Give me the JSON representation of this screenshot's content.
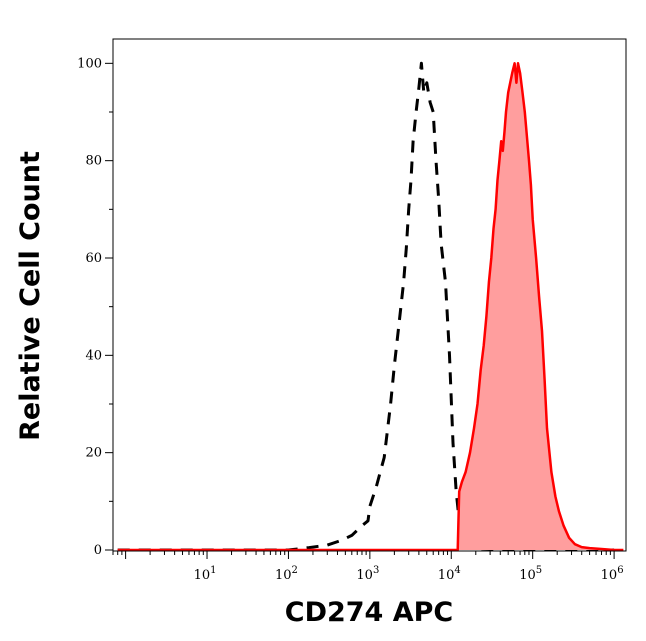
{
  "chart_data": {
    "type": "area",
    "xlabel": "CD274 APC",
    "ylabel": "Relative Cell Count",
    "xscale": "log",
    "xlim": [
      0.7,
      1400000
    ],
    "ylim": [
      0,
      105
    ],
    "x_ticks": [
      {
        "base": "10",
        "exp": "1",
        "value": 10
      },
      {
        "base": "10",
        "exp": "2",
        "value": 100
      },
      {
        "base": "10",
        "exp": "3",
        "value": 1000
      },
      {
        "base": "10",
        "exp": "4",
        "value": 10000
      },
      {
        "base": "10",
        "exp": "5",
        "value": 100000
      },
      {
        "base": "10",
        "exp": "6",
        "value": 1000000
      }
    ],
    "y_ticks": [
      "0",
      "20",
      "40",
      "60",
      "80",
      "100"
    ],
    "y_tick_values": [
      0,
      20,
      40,
      60,
      80,
      100
    ],
    "grid": false,
    "legend": "none",
    "series": [
      {
        "style": "dashed",
        "color": "#000000",
        "fill": "none",
        "x": [
          0.8,
          100,
          180,
          300,
          450,
          600,
          800,
          950,
          1000,
          1200,
          1500,
          1800,
          2000,
          2300,
          2600,
          2800,
          3000,
          3200,
          3400,
          3700,
          4000,
          4300,
          4600,
          5000,
          5500,
          6000,
          6500,
          7000,
          7500,
          8500,
          9500,
          10500,
          11500,
          12500,
          14000,
          15000,
          17000,
          20000,
          30000,
          100000,
          1000000
        ],
        "y": [
          0,
          0,
          0.5,
          1,
          2,
          3,
          5,
          6,
          9,
          13,
          19,
          30,
          38,
          47,
          55,
          62,
          70,
          76,
          84,
          90,
          95,
          100,
          94,
          96,
          92,
          90,
          80,
          72,
          63,
          55,
          40,
          22,
          12,
          6,
          3,
          1.5,
          0.8,
          0.3,
          0.2,
          0,
          0
        ]
      },
      {
        "style": "solid",
        "color": "#ff0000",
        "fill": "#ff9e9e",
        "x": [
          0.8,
          12000,
          12500,
          13500,
          15000,
          17000,
          19000,
          21000,
          23000,
          25000,
          27000,
          29000,
          31000,
          33000,
          35000,
          37000,
          39000,
          41000,
          43000,
          45000,
          47000,
          50000,
          53000,
          56000,
          60000,
          63000,
          66000,
          70000,
          75000,
          80000,
          85000,
          90000,
          95000,
          100000,
          110000,
          120000,
          130000,
          140000,
          150000,
          170000,
          190000,
          210000,
          240000,
          280000,
          330000,
          400000,
          500000,
          700000,
          1000000,
          1300000
        ],
        "y": [
          0,
          0,
          12,
          14,
          16,
          20,
          25,
          30,
          37,
          42,
          48,
          55,
          60,
          66,
          70,
          76,
          80,
          84,
          82,
          86,
          90,
          94,
          96,
          98,
          100,
          96,
          100,
          98,
          94,
          90,
          85,
          80,
          75,
          68,
          60,
          52,
          45,
          35,
          25,
          16,
          11,
          8,
          5,
          2.5,
          1.2,
          0.6,
          0.4,
          0.2,
          0,
          0
        ]
      }
    ]
  }
}
